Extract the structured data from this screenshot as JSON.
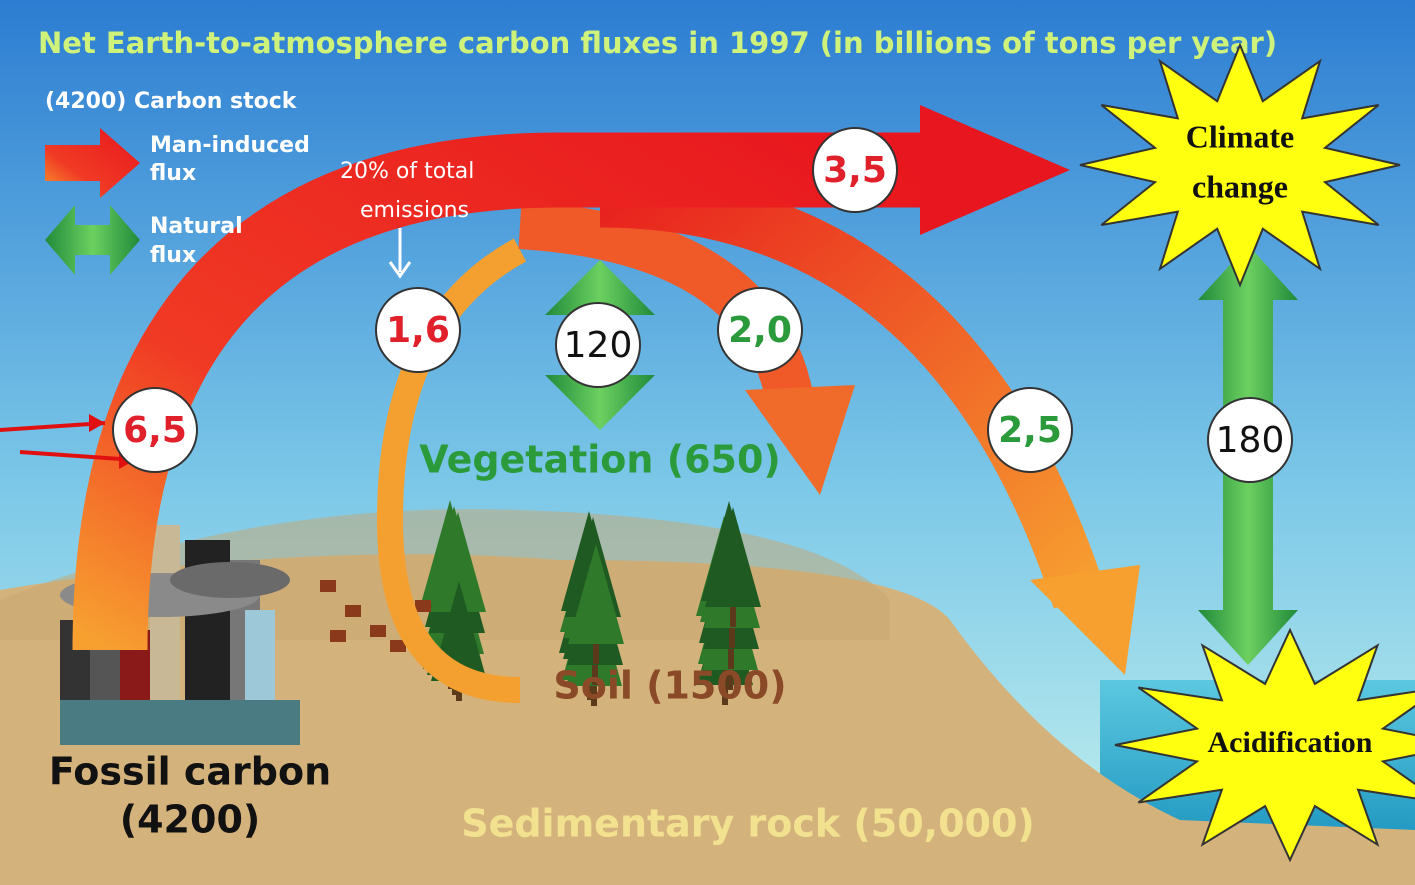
{
  "title": "Net Earth-to-atmosphere carbon fluxes in 1997 (in billions of tons per year)",
  "legend": {
    "stock": "(4200) Carbon stock",
    "man_induced": [
      "Man-induced",
      "flux"
    ],
    "natural": [
      "Natural",
      "flux"
    ]
  },
  "fluxes": [
    "6,5",
    "1,6",
    "120",
    "2,0",
    "3,5",
    "2,5",
    "180"
  ],
  "stocks": {
    "vegetation": "Vegetation (650)",
    "soil": "Soil (1500)",
    "fossil": [
      "Fossil carbon",
      "(4200)"
    ],
    "sedimentary": "Sedimentary rock (50,000)"
  },
  "annotation": [
    "20% of total",
    "emissions"
  ],
  "callouts": {
    "climate": [
      "Climate",
      "change"
    ],
    "acidification": "Acidification"
  }
}
